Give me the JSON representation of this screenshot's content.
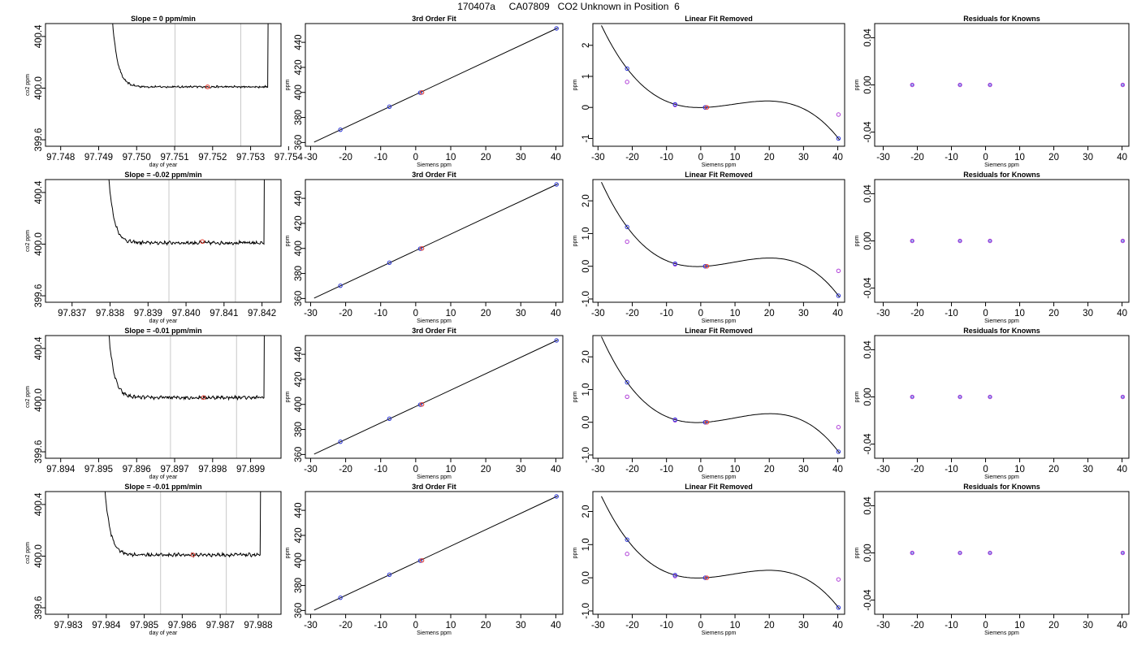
{
  "page_title": "170407a     CA07809   CO2 Unknown in Position  6",
  "chart_data": [
    {
      "type": "line",
      "row": 0,
      "title": "Slope =  0  ppm/min",
      "xlabel": "day of year",
      "ylabel": "co2 ppm",
      "xlim": [
        97.7476,
        97.7538
      ],
      "ylim": [
        399.55,
        400.5
      ],
      "xticks": [
        97.748,
        97.749,
        97.75,
        97.751,
        97.752,
        97.753,
        97.754
      ],
      "yticks": [
        399.6,
        400.0,
        400.4
      ],
      "vlines": [
        97.75101,
        97.75274
      ],
      "red_point": [
        97.75187,
        400.01
      ],
      "trace_x_range": [
        97.7492,
        97.7535
      ],
      "baseline": 400.01,
      "amplitude": 0.006
    },
    {
      "type": "line",
      "row": 1,
      "title": "Slope =  -0.02  ppm/min",
      "xlabel": "day of year",
      "ylabel": "co2 ppm",
      "xlim": [
        97.8363,
        97.8425
      ],
      "ylim": [
        399.55,
        400.5
      ],
      "xticks": [
        97.837,
        97.838,
        97.839,
        97.84,
        97.841,
        97.842
      ],
      "yticks": [
        399.6,
        400.0,
        400.4
      ],
      "vlines": [
        97.83955,
        97.8413
      ],
      "red_point": [
        97.84043,
        400.02
      ],
      "trace_x_range": [
        97.8378,
        97.8421
      ],
      "baseline": 400.01,
      "amplitude": 0.01
    },
    {
      "type": "line",
      "row": 2,
      "title": "Slope =  -0.01  ppm/min",
      "xlabel": "day of year",
      "ylabel": "co2 ppm",
      "xlim": [
        97.8936,
        97.8998
      ],
      "ylim": [
        399.55,
        400.5
      ],
      "xticks": [
        97.894,
        97.895,
        97.896,
        97.897,
        97.898,
        97.899
      ],
      "yticks": [
        399.6,
        400.0,
        400.4
      ],
      "vlines": [
        97.89689,
        97.89863
      ],
      "red_point": [
        97.89776,
        400.02
      ],
      "trace_x_range": [
        97.8951,
        97.8994
      ],
      "baseline": 400.02,
      "amplitude": 0.01
    },
    {
      "type": "line",
      "row": 3,
      "title": "Slope =  -0.01  ppm/min",
      "xlabel": "day of year",
      "ylabel": "co2 ppm",
      "xlim": [
        97.9824,
        97.9886
      ],
      "ylim": [
        399.55,
        400.5
      ],
      "xticks": [
        97.983,
        97.984,
        97.985,
        97.986,
        97.987,
        97.988
      ],
      "yticks": [
        399.6,
        400.0,
        400.4
      ],
      "vlines": [
        97.98543,
        97.98716
      ],
      "red_point": [
        97.98628,
        400.01
      ],
      "trace_x_range": [
        97.9838,
        97.9881
      ],
      "baseline": 400.01,
      "amplitude": 0.01
    },
    {
      "type": "scatter",
      "row": 0,
      "title": "3rd Order Fit",
      "xlabel": "Siemens ppm",
      "ylabel": "ppm",
      "xlim": [
        -31.5,
        42
      ],
      "ylim": [
        357,
        455
      ],
      "xticks": [
        -30,
        -20,
        -10,
        0,
        10,
        20,
        30,
        40
      ],
      "yticks": [
        360,
        380,
        400,
        420,
        440
      ],
      "x": [
        -21.5,
        -7.5,
        1.3,
        40.2
      ],
      "y": [
        370.2,
        388.6,
        399.8,
        451.1
      ],
      "red_point": [
        1.8,
        400.0
      ]
    },
    {
      "type": "scatter",
      "row": 1,
      "title": "3rd Order Fit",
      "xlabel": "Siemens ppm",
      "ylabel": "ppm",
      "xlim": [
        -31.5,
        42
      ],
      "ylim": [
        357,
        455
      ],
      "xticks": [
        -30,
        -20,
        -10,
        0,
        10,
        20,
        30,
        40
      ],
      "yticks": [
        360,
        380,
        400,
        420,
        440
      ],
      "x": [
        -21.5,
        -7.5,
        1.3,
        40.2
      ],
      "y": [
        370.2,
        388.6,
        399.8,
        451.1
      ],
      "red_point": [
        1.8,
        400.0
      ]
    },
    {
      "type": "scatter",
      "row": 2,
      "title": "3rd Order Fit",
      "xlabel": "Siemens ppm",
      "ylabel": "ppm",
      "xlim": [
        -31.5,
        42
      ],
      "ylim": [
        357,
        455
      ],
      "xticks": [
        -30,
        -20,
        -10,
        0,
        10,
        20,
        30,
        40
      ],
      "yticks": [
        360,
        380,
        400,
        420,
        440
      ],
      "x": [
        -21.5,
        -7.5,
        1.3,
        40.2
      ],
      "y": [
        370.2,
        388.6,
        399.8,
        451.1
      ],
      "red_point": [
        1.8,
        400.0
      ]
    },
    {
      "type": "scatter",
      "row": 3,
      "title": "3rd Order Fit",
      "xlabel": "Siemens ppm",
      "ylabel": "ppm",
      "xlim": [
        -31.5,
        42
      ],
      "ylim": [
        357,
        455
      ],
      "xticks": [
        -30,
        -20,
        -10,
        0,
        10,
        20,
        30,
        40
      ],
      "yticks": [
        360,
        380,
        400,
        420,
        440
      ],
      "x": [
        -21.5,
        -7.5,
        1.3,
        40.2
      ],
      "y": [
        370.2,
        388.6,
        399.8,
        451.1
      ],
      "red_point": [
        1.8,
        400.0
      ]
    },
    {
      "type": "scatter",
      "row": 0,
      "title": "Linear Fit Removed",
      "xlabel": "Siemens ppm",
      "ylabel": "ppm",
      "xlim": [
        -31.5,
        42
      ],
      "ylim": [
        -1.25,
        2.7
      ],
      "xticks": [
        -30,
        -20,
        -10,
        0,
        10,
        20,
        30,
        40
      ],
      "yticks": [
        -1,
        0,
        1,
        2
      ],
      "ytick_labels": [
        "-1",
        "0",
        "1",
        "2"
      ],
      "x": [
        -21.5,
        -7.5,
        1.3,
        40.2
      ],
      "y": [
        1.25,
        0.1,
        0.0,
        -1.0
      ],
      "y_linear": [
        0.82,
        0.08,
        0.0,
        -0.23
      ],
      "red_point": [
        1.8,
        0.0
      ],
      "curve_range": [
        -29,
        40.5
      ]
    },
    {
      "type": "scatter",
      "row": 1,
      "title": "Linear Fit Removed",
      "xlabel": "Siemens ppm",
      "ylabel": "ppm",
      "xlim": [
        -31.5,
        42
      ],
      "ylim": [
        -1.1,
        2.65
      ],
      "xticks": [
        -30,
        -20,
        -10,
        0,
        10,
        20,
        30,
        40
      ],
      "yticks": [
        -1,
        0,
        1,
        2
      ],
      "ytick_labels": [
        "-1.0",
        "0.0",
        "1.0",
        "2.0"
      ],
      "x": [
        -21.5,
        -7.5,
        1.3,
        40.2
      ],
      "y": [
        1.2,
        0.08,
        0.0,
        -0.9
      ],
      "y_linear": [
        0.75,
        0.06,
        0.0,
        -0.14
      ],
      "red_point": [
        1.8,
        0.0
      ],
      "curve_range": [
        -29,
        40.5
      ]
    },
    {
      "type": "scatter",
      "row": 2,
      "title": "Linear Fit Removed",
      "xlabel": "Siemens ppm",
      "ylabel": "ppm",
      "xlim": [
        -31.5,
        42
      ],
      "ylim": [
        -1.1,
        2.65
      ],
      "xticks": [
        -30,
        -20,
        -10,
        0,
        10,
        20,
        30,
        40
      ],
      "yticks": [
        -1,
        0,
        1,
        2
      ],
      "ytick_labels": [
        "-1.0",
        "0.0",
        "1.0",
        "2.0"
      ],
      "x": [
        -21.5,
        -7.5,
        1.3,
        40.2
      ],
      "y": [
        1.22,
        0.08,
        0.0,
        -0.9
      ],
      "y_linear": [
        0.78,
        0.06,
        0.0,
        -0.15
      ],
      "red_point": [
        1.8,
        0.0
      ],
      "curve_range": [
        -29,
        40.5
      ]
    },
    {
      "type": "scatter",
      "row": 3,
      "title": "Linear Fit Removed",
      "xlabel": "Siemens ppm",
      "ylabel": "ppm",
      "xlim": [
        -31.5,
        42
      ],
      "ylim": [
        -1.1,
        2.6
      ],
      "xticks": [
        -30,
        -20,
        -10,
        0,
        10,
        20,
        30,
        40
      ],
      "yticks": [
        -1,
        0,
        1,
        2
      ],
      "ytick_labels": [
        "-1.0",
        "0.0",
        "1.0",
        "2.0"
      ],
      "x": [
        -21.5,
        -7.5,
        1.3,
        40.2
      ],
      "y": [
        1.15,
        0.08,
        0.0,
        -0.9
      ],
      "y_linear": [
        0.72,
        0.05,
        0.0,
        -0.05
      ],
      "red_point": [
        1.8,
        0.0
      ],
      "curve_range": [
        -29,
        40.5
      ]
    },
    {
      "type": "scatter",
      "row": 0,
      "title": "Residuals for Knowns",
      "xlabel": "Siemens ppm",
      "ylabel": "ppm",
      "xlim": [
        -32.5,
        42
      ],
      "ylim": [
        -0.052,
        0.052
      ],
      "xticks": [
        -30,
        -20,
        -10,
        0,
        10,
        20,
        30,
        40
      ],
      "yticks": [
        -0.04,
        0.0,
        0.04
      ],
      "ytick_labels": [
        "-0.04",
        "0.00",
        "0.04"
      ],
      "x": [
        -21.5,
        -7.5,
        1.3,
        40.2
      ],
      "y": [
        0,
        0,
        0,
        0
      ]
    },
    {
      "type": "scatter",
      "row": 1,
      "title": "Residuals for Knowns",
      "xlabel": "Siemens ppm",
      "ylabel": "ppm",
      "xlim": [
        -32.5,
        42
      ],
      "ylim": [
        -0.052,
        0.052
      ],
      "xticks": [
        -30,
        -20,
        -10,
        0,
        10,
        20,
        30,
        40
      ],
      "yticks": [
        -0.04,
        0.0,
        0.04
      ],
      "ytick_labels": [
        "-0.04",
        "0.00",
        "0.04"
      ],
      "x": [
        -21.5,
        -7.5,
        1.3,
        40.2
      ],
      "y": [
        0,
        0,
        0,
        0
      ]
    },
    {
      "type": "scatter",
      "row": 2,
      "title": "Residuals for Knowns",
      "xlabel": "Siemens ppm",
      "ylabel": "ppm",
      "xlim": [
        -32.5,
        42
      ],
      "ylim": [
        -0.052,
        0.052
      ],
      "xticks": [
        -30,
        -20,
        -10,
        0,
        10,
        20,
        30,
        40
      ],
      "yticks": [
        -0.04,
        0.0,
        0.04
      ],
      "ytick_labels": [
        "-0.04",
        "0.00",
        "0.04"
      ],
      "x": [
        -21.5,
        -7.5,
        1.3,
        40.2
      ],
      "y": [
        0,
        0,
        0,
        0
      ]
    },
    {
      "type": "scatter",
      "row": 3,
      "title": "Residuals for Knowns",
      "xlabel": "Siemens ppm",
      "ylabel": "ppm",
      "xlim": [
        -32.5,
        42
      ],
      "ylim": [
        -0.052,
        0.052
      ],
      "xticks": [
        -30,
        -20,
        -10,
        0,
        10,
        20,
        30,
        40
      ],
      "yticks": [
        -0.04,
        0.0,
        0.04
      ],
      "ytick_labels": [
        "-0.04",
        "0.00",
        "0.04"
      ],
      "x": [
        -21.5,
        -7.5,
        1.3,
        40.2
      ],
      "y": [
        0,
        0,
        0,
        0
      ]
    }
  ],
  "colors": {
    "trace": "#000000",
    "vline": "#c8c8c8",
    "red_point": "#e8392b",
    "blue_point": "#2b35d8",
    "purple_point": "#b040d8",
    "fit_curve": "#000000"
  }
}
